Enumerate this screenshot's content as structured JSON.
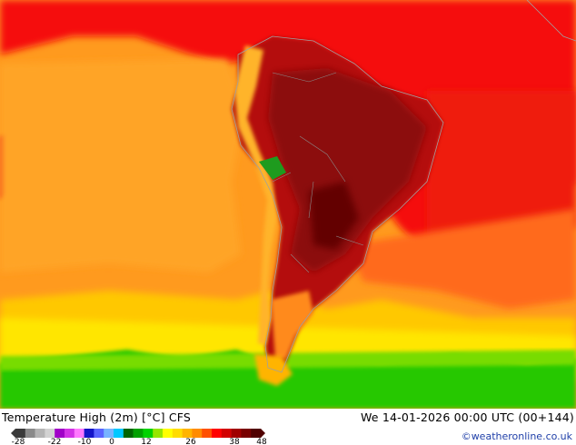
{
  "map": {
    "title": "Temperature High (2m) [°C] CFS",
    "datetime": "We 14-01-2026 00:00 UTC (00+144)",
    "credit": "©weatheronline.co.uk",
    "region": "South America",
    "legend": {
      "ticks": [
        "-28",
        "-22",
        "-10",
        "0",
        "12",
        "26",
        "38",
        "48"
      ],
      "colors": [
        "#3a3a3a",
        "#8a8a8a",
        "#b4b4b4",
        "#d2d2d2",
        "#a000c8",
        "#d232e6",
        "#ff78ff",
        "#1414c8",
        "#5a64ff",
        "#78b4ff",
        "#00c8ff",
        "#006400",
        "#00a000",
        "#00d200",
        "#96e600",
        "#ffff00",
        "#ffdc00",
        "#ffb400",
        "#ff8c00",
        "#ff5000",
        "#ff0000",
        "#d20000",
        "#a00000",
        "#780000",
        "#500000"
      ]
    }
  }
}
